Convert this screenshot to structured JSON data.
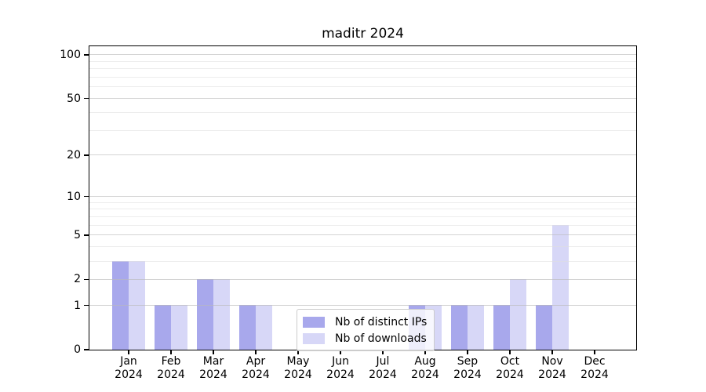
{
  "chart_data": {
    "type": "bar",
    "title": "maditr 2024",
    "categories": [
      "Jan 2024",
      "Feb 2024",
      "Mar 2024",
      "Apr 2024",
      "May 2024",
      "Jun 2024",
      "Jul 2024",
      "Aug 2024",
      "Sep 2024",
      "Oct 2024",
      "Nov 2024",
      "Dec 2024"
    ],
    "x_tick_months": [
      "Jan",
      "Feb",
      "Mar",
      "Apr",
      "May",
      "Jun",
      "Jul",
      "Aug",
      "Sep",
      "Oct",
      "Nov",
      "Dec"
    ],
    "x_tick_year": "2024",
    "series": [
      {
        "name": "Nb of distinct IPs",
        "color": "#a8a8ec",
        "values": [
          3,
          1,
          2,
          1,
          0,
          0,
          0,
          1,
          1,
          1,
          1,
          0
        ]
      },
      {
        "name": "Nb of downloads",
        "color": "#d7d7f7",
        "values": [
          3,
          1,
          2,
          1,
          0,
          0,
          0,
          1,
          1,
          2,
          6,
          0
        ]
      }
    ],
    "y_axis": {
      "scale": "log1p",
      "tick_values": [
        0,
        1,
        2,
        5,
        10,
        20,
        50,
        100
      ],
      "minor_gridline_values": [
        3,
        4,
        6,
        7,
        8,
        9,
        30,
        40,
        60,
        70,
        80,
        90
      ],
      "range": [
        0,
        113
      ]
    },
    "grid": true,
    "legend": {
      "position": "inside-lower-center",
      "entries": [
        "Nb of distinct IPs",
        "Nb of downloads"
      ]
    }
  },
  "colors": {
    "bar_distinct_ips": "#a8a8ec",
    "bar_downloads": "#d7d7f7",
    "grid_major": "#c9c9c9",
    "grid_minor": "#e6e6e6",
    "spine": "#000000",
    "background": "#ffffff",
    "legend_border": "#cccccc"
  }
}
